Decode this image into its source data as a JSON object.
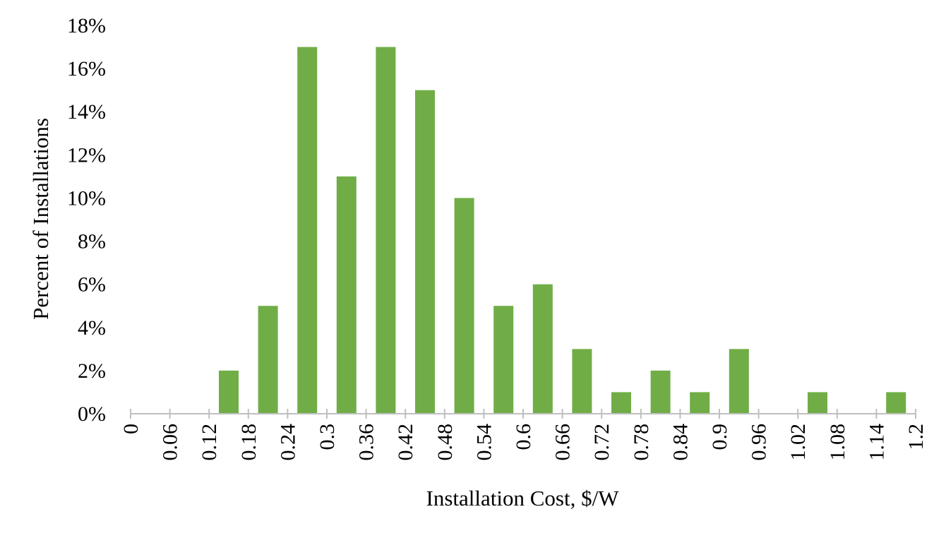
{
  "chart_data": {
    "type": "bar",
    "title": "",
    "xlabel": "Installation Cost, $/W",
    "ylabel": "Percent of Installations",
    "x_tick_labels": [
      "0",
      "0.06",
      "0.12",
      "0.18",
      "0.24",
      "0.3",
      "0.36",
      "0.42",
      "0.48",
      "0.54",
      "0.6",
      "0.66",
      "0.72",
      "0.78",
      "0.84",
      "0.9",
      "0.96",
      "1.02",
      "1.08",
      "1.14",
      "1.2"
    ],
    "y_tick_labels": [
      "0%",
      "2%",
      "4%",
      "6%",
      "8%",
      "10%",
      "12%",
      "14%",
      "16%",
      "18%"
    ],
    "ylim": [
      0,
      18
    ],
    "bins": [
      {
        "x": 0.15,
        "value": 2
      },
      {
        "x": 0.21,
        "value": 5
      },
      {
        "x": 0.27,
        "value": 17
      },
      {
        "x": 0.33,
        "value": 11
      },
      {
        "x": 0.39,
        "value": 17
      },
      {
        "x": 0.45,
        "value": 15
      },
      {
        "x": 0.51,
        "value": 10
      },
      {
        "x": 0.57,
        "value": 5
      },
      {
        "x": 0.63,
        "value": 6
      },
      {
        "x": 0.69,
        "value": 3
      },
      {
        "x": 0.75,
        "value": 1
      },
      {
        "x": 0.81,
        "value": 2
      },
      {
        "x": 0.87,
        "value": 1
      },
      {
        "x": 0.93,
        "value": 3
      },
      {
        "x": 1.05,
        "value": 1
      },
      {
        "x": 1.17,
        "value": 1
      }
    ],
    "grid": false,
    "legend": "none",
    "colors": {
      "bar": "#70ad47",
      "axis": "#bfbfbf"
    }
  }
}
